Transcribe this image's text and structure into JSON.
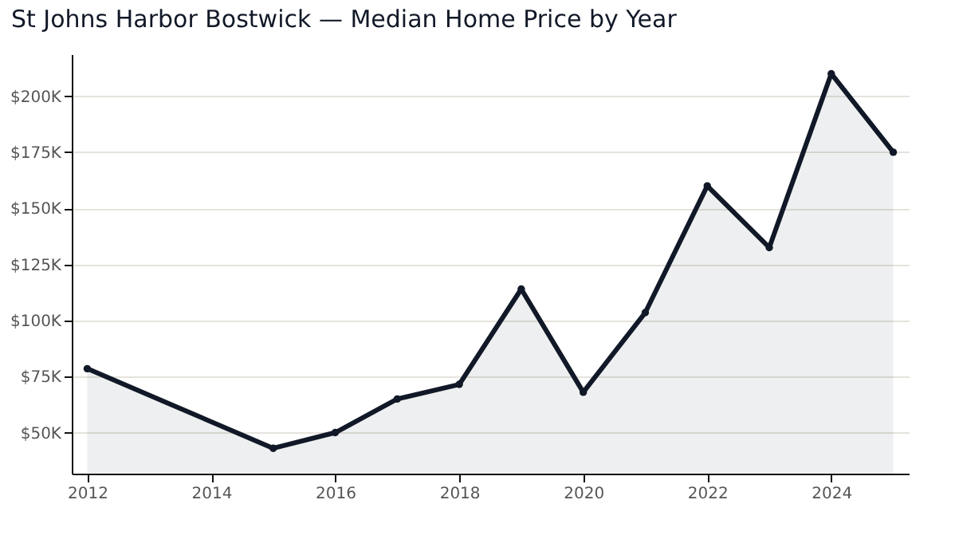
{
  "chart_data": {
    "type": "area",
    "title": "St Johns Harbor Bostwick — Median Home Price by Year",
    "x": [
      2012,
      2015,
      2016,
      2017,
      2018,
      2019,
      2020,
      2021,
      2022,
      2023,
      2024,
      2025
    ],
    "series": [
      {
        "color": "#111827",
        "values": [
          78500,
          43000,
          50000,
          65000,
          71500,
          114000,
          68000,
          103500,
          160000,
          132500,
          210000,
          175000
        ]
      }
    ],
    "xlim": [
      2011.75,
      2025.25
    ],
    "xticks": [
      2012,
      2014,
      2016,
      2018,
      2020,
      2022,
      2024
    ],
    "ylim": [
      31700,
      218700
    ],
    "yticks": [
      {
        "value": 50000,
        "label": "$50K"
      },
      {
        "value": 75000,
        "label": "$75K"
      },
      {
        "value": 100000,
        "label": "$100K"
      },
      {
        "value": 125000,
        "label": "$125K"
      },
      {
        "value": 150000,
        "label": "$150K"
      },
      {
        "value": 175000,
        "label": "$175K"
      },
      {
        "value": 200000,
        "label": "$200K"
      }
    ],
    "grid": "y",
    "marker": "circle",
    "line_style": "solid"
  }
}
